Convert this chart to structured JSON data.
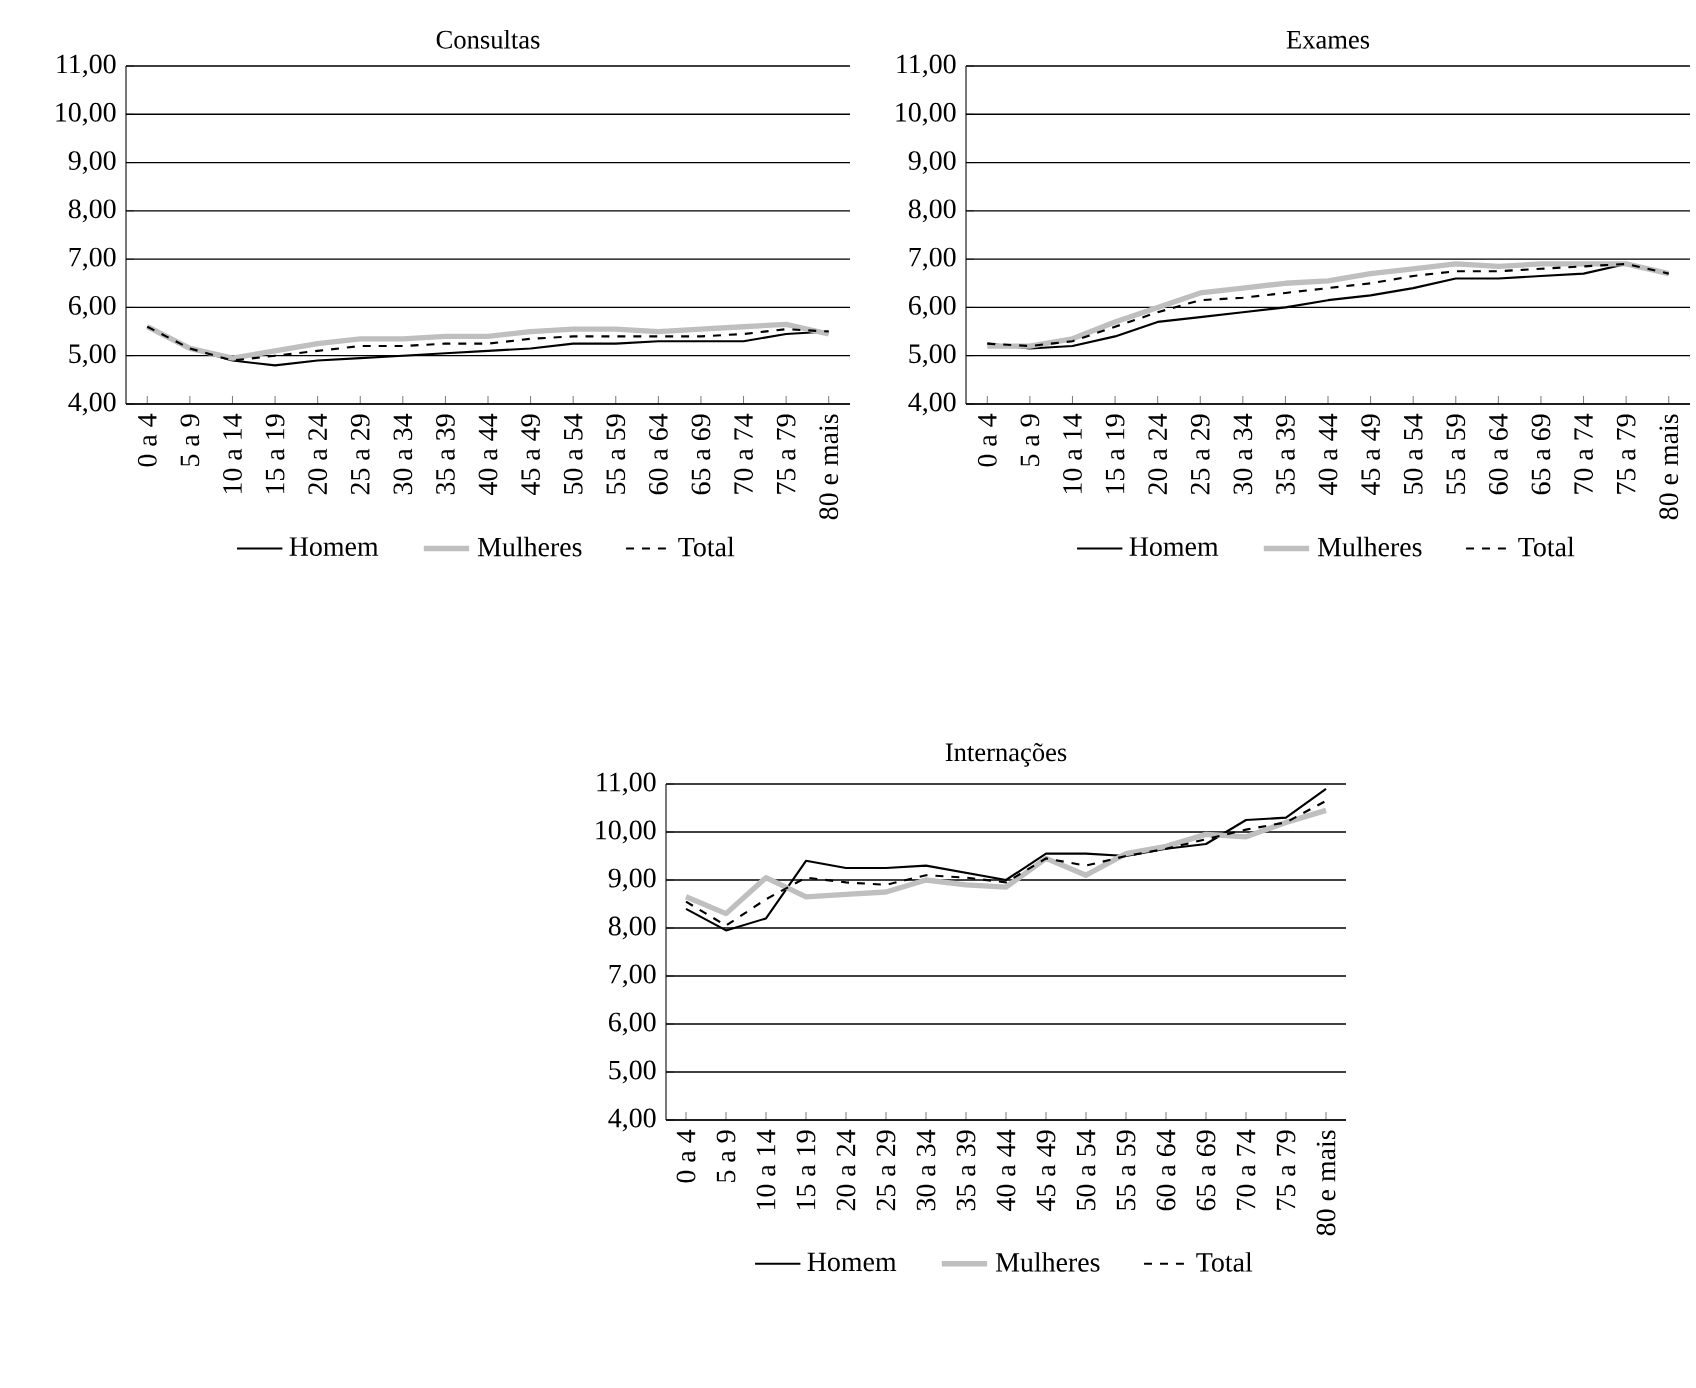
{
  "chart_data": [
    {
      "type": "line",
      "title": "Consultas",
      "categories": [
        "0 a 4",
        "5 a 9",
        "10 a 14",
        "15 a 19",
        "20 a 24",
        "25 a 29",
        "30 a 34",
        "35 a 39",
        "40 a 44",
        "45 a 49",
        "50 a 54",
        "55 a 59",
        "60 a 64",
        "65 a 69",
        "70 a 74",
        "75 a 79",
        "80 e mais"
      ],
      "ylim": [
        4,
        11
      ],
      "yticks": [
        {
          "value": 4,
          "label": "4,00"
        },
        {
          "value": 5,
          "label": "5,00"
        },
        {
          "value": 6,
          "label": "6,00"
        },
        {
          "value": 7,
          "label": "7,00"
        },
        {
          "value": 8,
          "label": "8,00"
        },
        {
          "value": 9,
          "label": "9,00"
        },
        {
          "value": 10,
          "label": "10,00"
        },
        {
          "value": 11,
          "label": "11,00"
        }
      ],
      "grid": "y",
      "legend": "bottom",
      "marker": "none",
      "series": [
        {
          "name": "Homem",
          "color": "#000000",
          "line_style": "solid",
          "values": [
            5.6,
            5.15,
            4.9,
            4.8,
            4.9,
            4.95,
            5.0,
            5.05,
            5.1,
            5.15,
            5.25,
            5.25,
            5.3,
            5.3,
            5.3,
            5.45,
            5.5
          ]
        },
        {
          "name": "Mulheres",
          "color": "#bfbfbf",
          "line_style": "solid",
          "values": [
            5.6,
            5.15,
            4.95,
            5.1,
            5.25,
            5.35,
            5.35,
            5.4,
            5.4,
            5.5,
            5.55,
            5.55,
            5.5,
            5.55,
            5.6,
            5.65,
            5.45
          ]
        },
        {
          "name": "Total",
          "color": "#000000",
          "line_style": "dashed",
          "values": [
            5.6,
            5.15,
            4.9,
            5.0,
            5.1,
            5.2,
            5.2,
            5.25,
            5.25,
            5.35,
            5.4,
            5.4,
            5.4,
            5.4,
            5.45,
            5.55,
            5.5
          ]
        }
      ]
    },
    {
      "type": "line",
      "title": "Exames",
      "categories": [
        "0 a 4",
        "5 a 9",
        "10 a 14",
        "15 a 19",
        "20 a 24",
        "25 a 29",
        "30 a 34",
        "35 a 39",
        "40 a 44",
        "45 a 49",
        "50 a 54",
        "55 a 59",
        "60 a 64",
        "65 a 69",
        "70 a 74",
        "75 a 79",
        "80 e mais"
      ],
      "ylim": [
        4,
        11
      ],
      "yticks": [
        {
          "value": 4,
          "label": "4,00"
        },
        {
          "value": 5,
          "label": "5,00"
        },
        {
          "value": 6,
          "label": "6,00"
        },
        {
          "value": 7,
          "label": "7,00"
        },
        {
          "value": 8,
          "label": "8,00"
        },
        {
          "value": 9,
          "label": "9,00"
        },
        {
          "value": 10,
          "label": "10,00"
        },
        {
          "value": 11,
          "label": "11,00"
        }
      ],
      "grid": "y",
      "legend": "bottom",
      "marker": "none",
      "series": [
        {
          "name": "Homem",
          "color": "#000000",
          "line_style": "solid",
          "values": [
            5.25,
            5.15,
            5.2,
            5.4,
            5.7,
            5.8,
            5.9,
            6.0,
            6.15,
            6.25,
            6.4,
            6.6,
            6.6,
            6.65,
            6.7,
            6.9,
            6.7
          ]
        },
        {
          "name": "Mulheres",
          "color": "#bfbfbf",
          "line_style": "solid",
          "values": [
            5.2,
            5.2,
            5.35,
            5.7,
            6.0,
            6.3,
            6.4,
            6.5,
            6.55,
            6.7,
            6.8,
            6.9,
            6.85,
            6.9,
            6.9,
            6.9,
            6.7
          ]
        },
        {
          "name": "Total",
          "color": "#000000",
          "line_style": "dashed",
          "values": [
            5.25,
            5.2,
            5.3,
            5.6,
            5.9,
            6.15,
            6.2,
            6.3,
            6.4,
            6.5,
            6.65,
            6.75,
            6.75,
            6.8,
            6.85,
            6.9,
            6.7
          ]
        }
      ]
    },
    {
      "type": "line",
      "title": "Internações",
      "categories": [
        "0 a 4",
        "5 a 9",
        "10 a 14",
        "15 a 19",
        "20 a 24",
        "25 a 29",
        "30 a 34",
        "35 a 39",
        "40 a 44",
        "45 a 49",
        "50 a 54",
        "55 a 59",
        "60 a 64",
        "65 a 69",
        "70 a 74",
        "75 a 79",
        "80 e mais"
      ],
      "ylim": [
        4,
        11
      ],
      "yticks": [
        {
          "value": 4,
          "label": "4,00"
        },
        {
          "value": 5,
          "label": "5,00"
        },
        {
          "value": 6,
          "label": "6,00"
        },
        {
          "value": 7,
          "label": "7,00"
        },
        {
          "value": 8,
          "label": "8,00"
        },
        {
          "value": 9,
          "label": "9,00"
        },
        {
          "value": 10,
          "label": "10,00"
        },
        {
          "value": 11,
          "label": "11,00"
        }
      ],
      "grid": "y",
      "legend": "bottom",
      "marker": "none",
      "series": [
        {
          "name": "Homem",
          "color": "#000000",
          "line_style": "solid",
          "values": [
            8.4,
            7.95,
            8.2,
            9.4,
            9.25,
            9.25,
            9.3,
            9.15,
            9.0,
            9.55,
            9.55,
            9.5,
            9.65,
            9.75,
            10.25,
            10.3,
            10.9
          ]
        },
        {
          "name": "Mulheres",
          "color": "#bfbfbf",
          "line_style": "solid",
          "values": [
            8.65,
            8.3,
            9.05,
            8.65,
            8.7,
            8.75,
            9.0,
            8.9,
            8.85,
            9.45,
            9.1,
            9.55,
            9.7,
            9.95,
            9.9,
            10.2,
            10.45
          ]
        },
        {
          "name": "Total",
          "color": "#000000",
          "line_style": "dashed",
          "values": [
            8.55,
            8.05,
            8.6,
            9.05,
            8.95,
            8.9,
            9.1,
            9.05,
            8.95,
            9.45,
            9.3,
            9.5,
            9.65,
            9.85,
            10.05,
            10.2,
            10.65
          ]
        }
      ]
    }
  ]
}
